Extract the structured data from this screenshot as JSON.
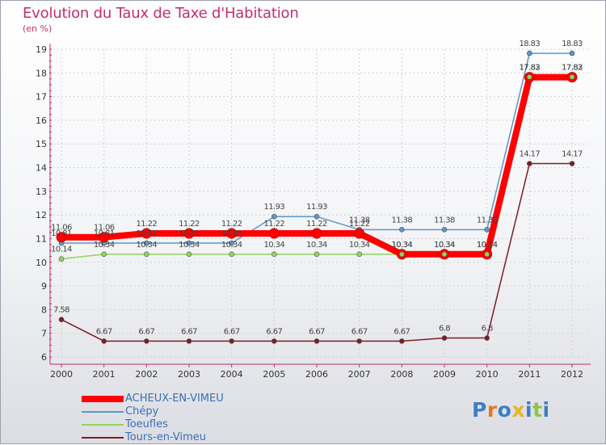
{
  "chart_data": {
    "type": "line",
    "title": "Evolution du Taux de Taxe d'Habitation",
    "subtitle": "(en %)",
    "ylim": [
      6,
      19
    ],
    "yticks": [
      6,
      7,
      8,
      9,
      10,
      11,
      12,
      13,
      14,
      15,
      16,
      17,
      18,
      19
    ],
    "categories": [
      "2000",
      "2001",
      "2002",
      "2003",
      "2004",
      "2005",
      "2006",
      "2007",
      "2008",
      "2009",
      "2010",
      "2011",
      "2012"
    ],
    "series": [
      {
        "name": "ACHEUX-EN-VIMEU",
        "color": "#ff0000",
        "values": [
          11.06,
          11.06,
          11.22,
          11.22,
          11.22,
          11.22,
          11.22,
          11.22,
          10.34,
          10.34,
          10.34,
          17.82,
          17.82
        ]
      },
      {
        "name": "Chépy",
        "color": "#5b97c7",
        "values": [
          10.81,
          10.81,
          10.81,
          10.81,
          10.81,
          11.93,
          11.93,
          11.38,
          11.38,
          11.38,
          11.38,
          18.83,
          18.83
        ]
      },
      {
        "name": "Toeufles",
        "color": "#8fd65a",
        "values": [
          10.14,
          10.34,
          10.34,
          10.34,
          10.34,
          10.34,
          10.34,
          10.34,
          10.34,
          10.34,
          10.34,
          17.83,
          17.83
        ]
      },
      {
        "name": "Tours-en-Vimeu",
        "color": "#7a1e24",
        "values": [
          7.58,
          6.67,
          6.67,
          6.67,
          6.67,
          6.67,
          6.67,
          6.67,
          6.67,
          6.8,
          6.8,
          14.17,
          14.17
        ]
      }
    ],
    "grid": true,
    "legend_position": "bottom-left"
  },
  "logo": {
    "text": "Proxiti",
    "colors": [
      "#3b7fc4",
      "#e87722",
      "#3b7fc4",
      "#e8b41f",
      "#3b7fc4",
      "#8cc63f",
      "#3b7fc4"
    ]
  }
}
